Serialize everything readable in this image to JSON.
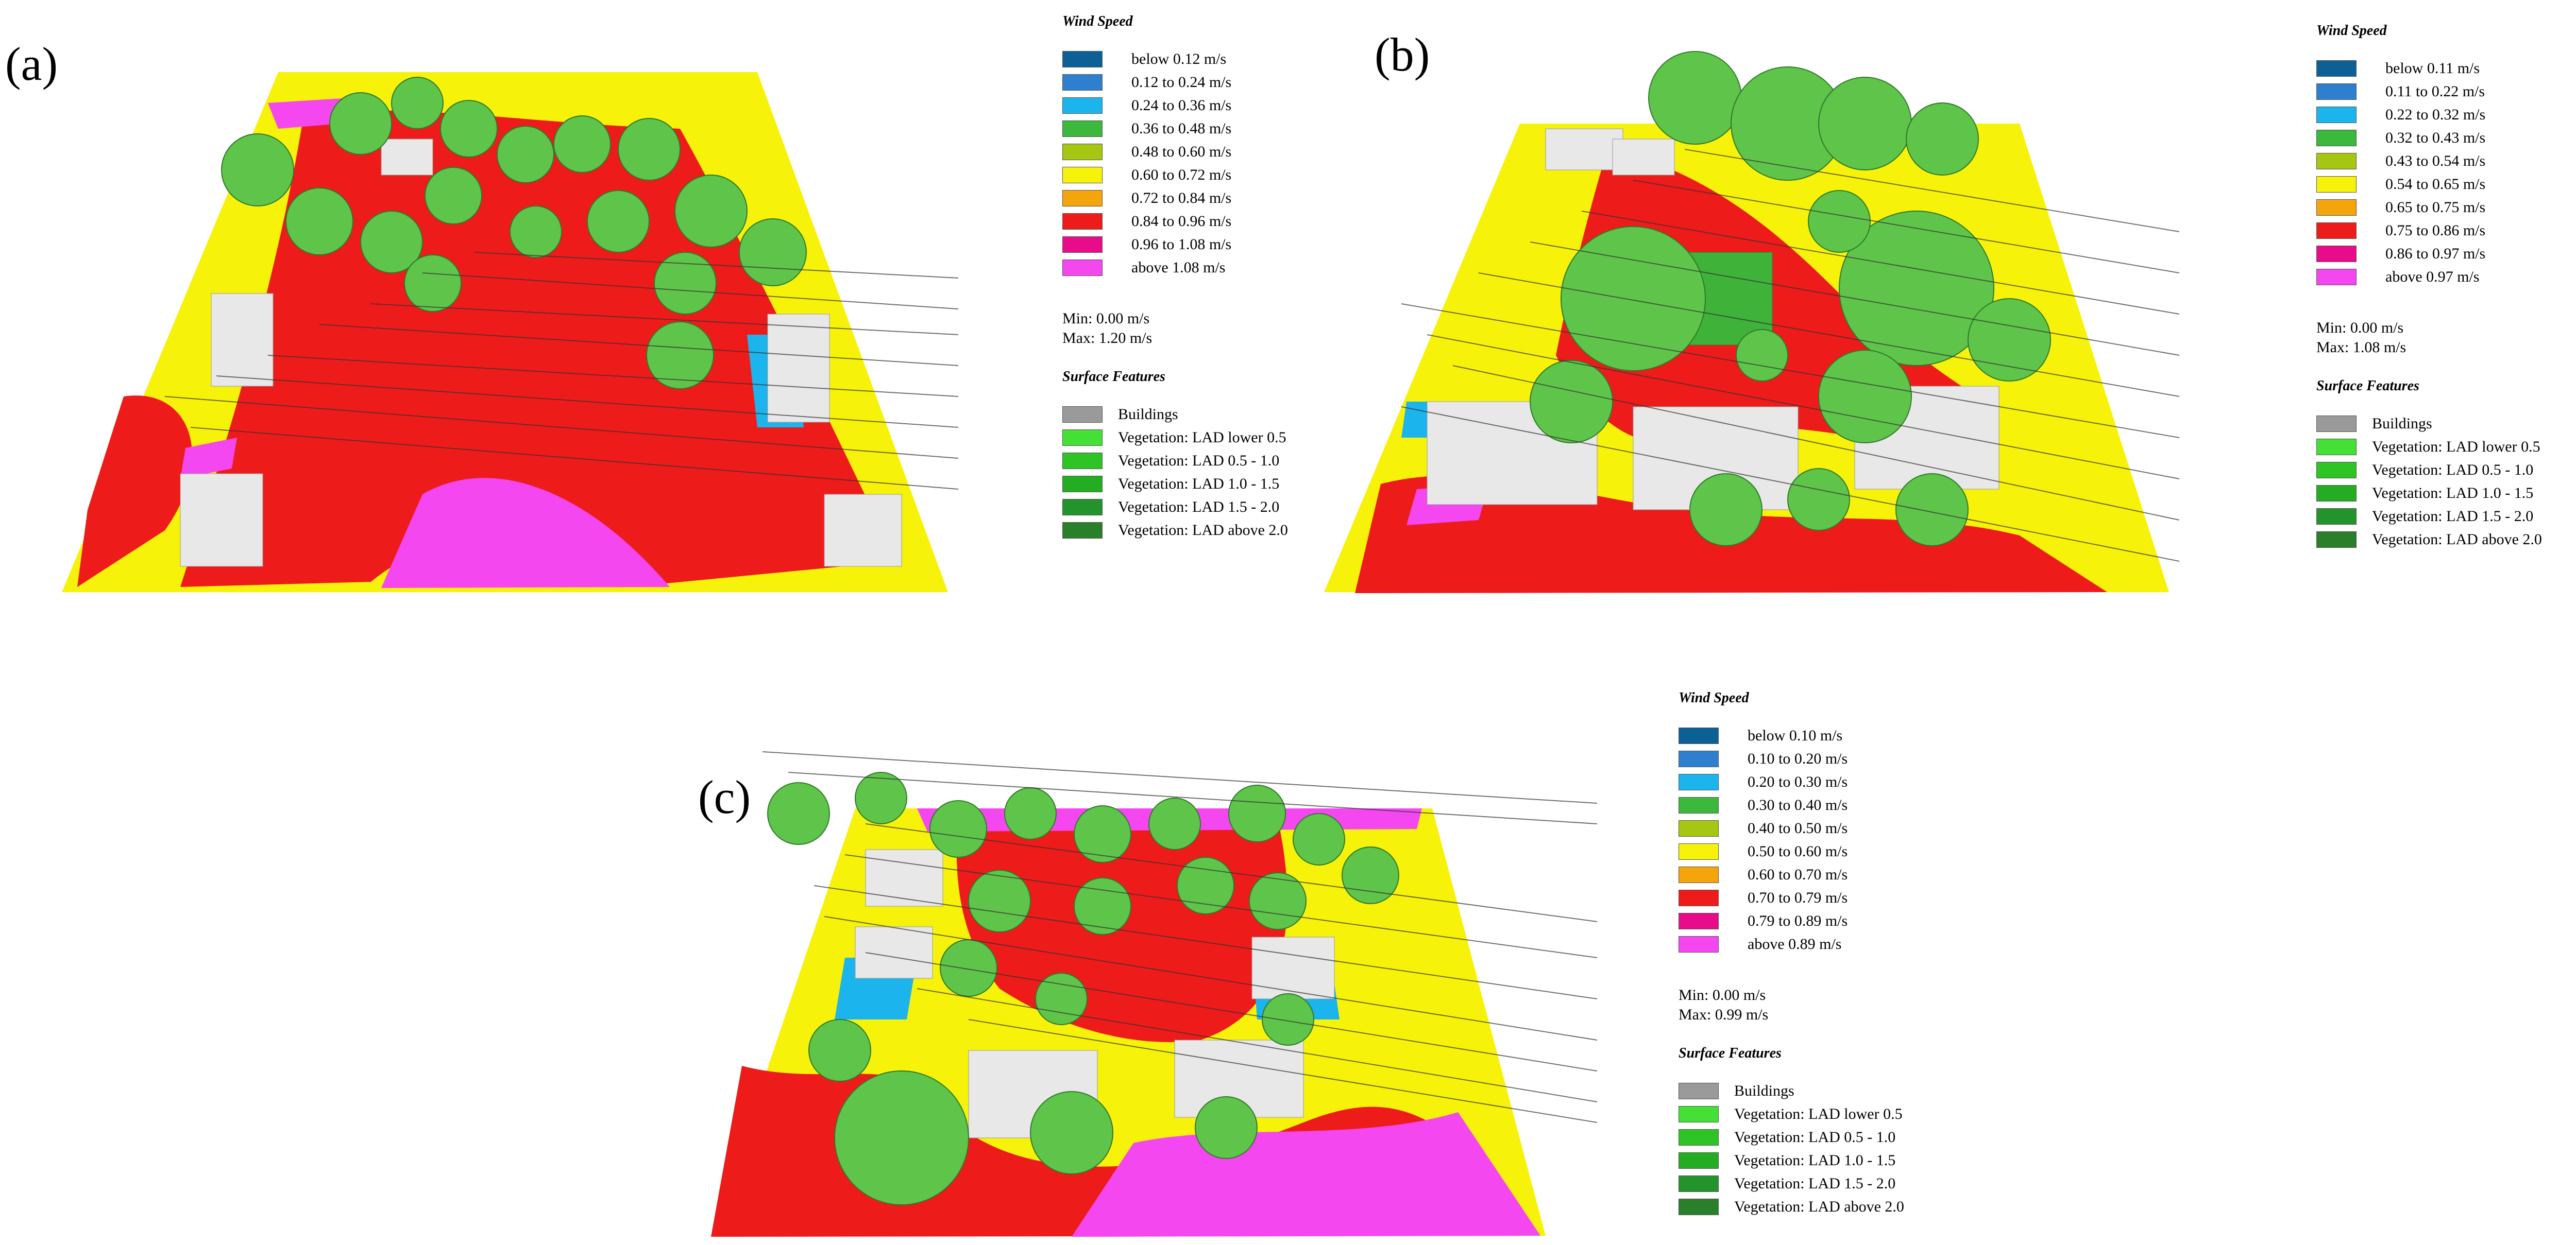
{
  "colors": {
    "wind": [
      "#0d6096",
      "#2f7fcf",
      "#1cb4ec",
      "#3cb83c",
      "#a5c712",
      "#f7f20a",
      "#f4a50c",
      "#ee1b1b",
      "#e80c8b",
      "#f447f0"
    ],
    "features": [
      "#9a9a9a",
      "#45e035",
      "#2ec425",
      "#24ad22",
      "#22942b",
      "#2a7f2a"
    ],
    "ground_yellow": "#f7f20a",
    "ground_red": "#ee1b1b",
    "ground_magenta": "#f447f0",
    "ground_blue": "#1cb4ec",
    "building": "#e8e8e8",
    "tree": "#5fc44a"
  },
  "legend_titles": {
    "wind": "Wind Speed",
    "features": "Surface Features"
  },
  "features": [
    "Buildings",
    "Vegetation: LAD lower 0.5",
    "Vegetation:  LAD 0.5 - 1.0",
    "Vegetation:  LAD 1.0 - 1.5",
    "Vegetation:  LAD 1.5 - 2.0",
    "Vegetation:  LAD above 2.0"
  ],
  "panels": [
    {
      "label": "(a)",
      "wind_ranges": [
        "below 0.12 m/s",
        "0.12 to 0.24 m/s",
        "0.24 to 0.36 m/s",
        "0.36 to 0.48 m/s",
        "0.48 to 0.60 m/s",
        "0.60 to 0.72 m/s",
        "0.72 to 0.84 m/s",
        "0.84 to 0.96 m/s",
        "0.96 to 1.08 m/s",
        "above 1.08 m/s"
      ],
      "min": "Min: 0.00 m/s",
      "max": "Max: 1.20 m/s"
    },
    {
      "label": "(b)",
      "wind_ranges": [
        "below 0.11 m/s",
        "0.11 to 0.22 m/s",
        "0.22 to 0.32 m/s",
        "0.32 to 0.43 m/s",
        "0.43 to 0.54 m/s",
        "0.54 to 0.65 m/s",
        "0.65 to 0.75 m/s",
        "0.75 to 0.86 m/s",
        "0.86 to 0.97 m/s",
        "above 0.97 m/s"
      ],
      "min": "Min: 0.00 m/s",
      "max": "Max: 1.08 m/s"
    },
    {
      "label": "(c)",
      "wind_ranges": [
        "below 0.10 m/s",
        "0.10 to 0.20 m/s",
        "0.20 to 0.30 m/s",
        "0.30 to 0.40 m/s",
        "0.40 to 0.50 m/s",
        "0.50 to 0.60 m/s",
        "0.60 to 0.70 m/s",
        "0.70 to 0.79 m/s",
        "0.79 to 0.89 m/s",
        "above 0.89 m/s"
      ],
      "min": "Min: 0.00 m/s",
      "max": "Max: 0.99 m/s"
    }
  ]
}
